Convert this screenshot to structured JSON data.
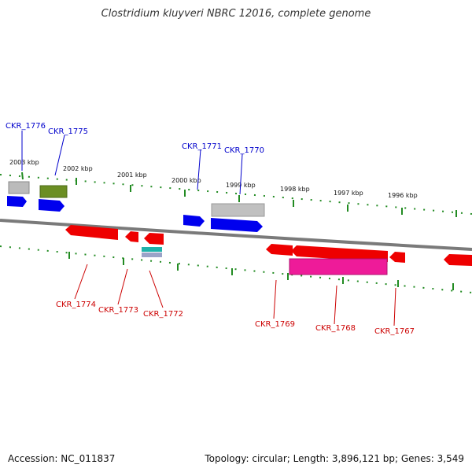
{
  "title": "Clostridium kluyveri NBRC 12016, complete genome",
  "footer": {
    "accession": "Accession: NC_011837",
    "topology": "Topology: circular; Length: 3,896,121 bp; Genes: 3,549"
  },
  "scale_labels": [
    "2003 kbp",
    "2002 kbp",
    "2001 kbp",
    "2000 kbp",
    "1999 kbp",
    "1998 kbp",
    "1997 kbp",
    "1996 kbp"
  ],
  "gene_labels_top": [
    "CKR_1776",
    "CKR_1775",
    "CKR_1771",
    "CKR_1770"
  ],
  "gene_labels_bottom": [
    "CKR_1774",
    "CKR_1773",
    "CKR_1772",
    "CKR_1769",
    "CKR_1768",
    "CKR_1767"
  ],
  "colors": {
    "forward": "#0000ff",
    "reverse": "#ff0000",
    "top_label": "#0000cc",
    "bottom_label": "#cc0000",
    "tick": "#228b22",
    "backbone": "#777777"
  }
}
